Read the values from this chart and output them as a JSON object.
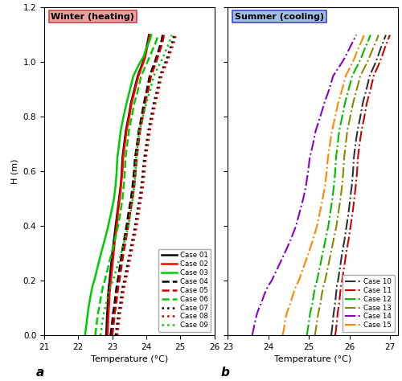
{
  "winter_label": "Winter (heating)",
  "summer_label": "Summer (cooling)",
  "xlabel": "Temperature (°C)",
  "ylabel": "H (m)",
  "label_a": "a",
  "label_b": "b",
  "ylim": [
    0.0,
    1.2
  ],
  "winter_xlim": [
    21,
    26
  ],
  "summer_xlim": [
    23,
    27.2
  ],
  "winter_xticks": [
    21,
    22,
    23,
    24,
    25,
    26
  ],
  "summer_xticks": [
    23,
    24,
    25,
    26,
    27
  ],
  "yticks": [
    0.0,
    0.2,
    0.4,
    0.6,
    0.8,
    1.0,
    1.2
  ],
  "height_points": [
    0.0,
    0.02,
    0.05,
    0.08,
    0.1,
    0.12,
    0.15,
    0.18,
    0.2,
    0.25,
    0.3,
    0.35,
    0.4,
    0.45,
    0.5,
    0.55,
    0.6,
    0.65,
    0.7,
    0.75,
    0.8,
    0.85,
    0.9,
    0.95,
    1.0,
    1.02,
    1.05,
    1.08,
    1.1
  ],
  "winter_cases": {
    "Case 01": {
      "color": "#000000",
      "linestyle": "solid",
      "linewidth": 1.8,
      "temps": [
        22.82,
        22.83,
        22.84,
        22.85,
        22.86,
        22.87,
        22.88,
        22.9,
        22.92,
        22.96,
        23.0,
        23.05,
        23.1,
        23.15,
        23.2,
        23.25,
        23.28,
        23.3,
        23.35,
        23.4,
        23.48,
        23.55,
        23.65,
        23.75,
        23.9,
        23.95,
        24.0,
        24.05,
        24.08
      ]
    },
    "Case 02": {
      "color": "#ff0000",
      "linestyle": "solid",
      "linewidth": 1.8,
      "temps": [
        22.86,
        22.87,
        22.88,
        22.89,
        22.9,
        22.91,
        22.92,
        22.94,
        22.96,
        23.0,
        23.04,
        23.08,
        23.13,
        23.17,
        23.22,
        23.26,
        23.3,
        23.32,
        23.37,
        23.42,
        23.5,
        23.57,
        23.67,
        23.77,
        23.92,
        23.97,
        24.02,
        24.07,
        24.1
      ]
    },
    "Case 03": {
      "color": "#00cc00",
      "linestyle": "solid",
      "linewidth": 1.8,
      "temps": [
        22.2,
        22.22,
        22.25,
        22.28,
        22.3,
        22.33,
        22.37,
        22.42,
        22.47,
        22.57,
        22.67,
        22.78,
        22.88,
        22.97,
        23.05,
        23.1,
        23.13,
        23.15,
        23.2,
        23.25,
        23.33,
        23.42,
        23.52,
        23.62,
        23.82,
        23.92,
        24.0,
        24.1,
        24.15
      ]
    },
    "Case 04": {
      "color": "#000000",
      "linestyle": "dashed",
      "linewidth": 1.8,
      "temps": [
        22.95,
        22.97,
        23.0,
        23.02,
        23.05,
        23.07,
        23.1,
        23.13,
        23.16,
        23.22,
        23.28,
        23.35,
        23.42,
        23.48,
        23.55,
        23.6,
        23.64,
        23.67,
        23.73,
        23.78,
        23.86,
        23.93,
        24.02,
        24.1,
        24.25,
        24.3,
        24.38,
        24.45,
        24.48
      ]
    },
    "Case 05": {
      "color": "#cc0000",
      "linestyle": "dashed",
      "linewidth": 1.8,
      "temps": [
        23.0,
        23.02,
        23.05,
        23.07,
        23.1,
        23.12,
        23.15,
        23.18,
        23.21,
        23.27,
        23.33,
        23.4,
        23.47,
        23.53,
        23.6,
        23.65,
        23.69,
        23.72,
        23.77,
        23.82,
        23.9,
        23.97,
        24.06,
        24.14,
        24.29,
        24.34,
        24.42,
        24.49,
        24.52
      ]
    },
    "Case 06": {
      "color": "#00cc00",
      "linestyle": "dashed",
      "linewidth": 1.8,
      "temps": [
        22.5,
        22.52,
        22.55,
        22.58,
        22.61,
        22.64,
        22.68,
        22.73,
        22.78,
        22.88,
        22.98,
        23.08,
        23.17,
        23.24,
        23.3,
        23.34,
        23.37,
        23.39,
        23.44,
        23.49,
        23.57,
        23.65,
        23.76,
        23.85,
        24.03,
        24.1,
        24.2,
        24.3,
        24.35
      ]
    },
    "Case 07": {
      "color": "#000000",
      "linestyle": "dotted",
      "linewidth": 1.8,
      "temps": [
        23.1,
        23.12,
        23.15,
        23.18,
        23.21,
        23.24,
        23.27,
        23.31,
        23.35,
        23.43,
        23.51,
        23.59,
        23.67,
        23.73,
        23.8,
        23.86,
        23.9,
        23.94,
        24.0,
        24.06,
        24.14,
        24.22,
        24.32,
        24.4,
        24.56,
        24.62,
        24.7,
        24.78,
        24.82
      ]
    },
    "Case 08": {
      "color": "#cc0000",
      "linestyle": "dotted",
      "linewidth": 1.8,
      "temps": [
        23.15,
        23.17,
        23.2,
        23.23,
        23.26,
        23.29,
        23.32,
        23.36,
        23.4,
        23.48,
        23.56,
        23.64,
        23.72,
        23.78,
        23.85,
        23.91,
        23.95,
        23.99,
        24.05,
        24.11,
        24.19,
        24.27,
        24.37,
        24.45,
        24.61,
        24.67,
        24.75,
        24.83,
        24.87
      ]
    },
    "Case 09": {
      "color": "#00cc00",
      "linestyle": "dotted",
      "linewidth": 1.8,
      "temps": [
        22.65,
        22.68,
        22.71,
        22.75,
        22.79,
        22.83,
        22.88,
        22.95,
        23.02,
        23.14,
        23.26,
        23.37,
        23.47,
        23.54,
        23.6,
        23.65,
        23.68,
        23.7,
        23.75,
        23.8,
        23.9,
        24.0,
        24.12,
        24.22,
        24.42,
        24.5,
        24.6,
        24.7,
        24.75
      ]
    }
  },
  "summer_cases": {
    "Case 10": {
      "color": "#333333",
      "linestyle": "dashdot",
      "linewidth": 1.5,
      "temps": [
        25.55,
        25.57,
        25.59,
        25.61,
        25.63,
        25.65,
        25.67,
        25.69,
        25.72,
        25.77,
        25.82,
        25.88,
        25.93,
        25.98,
        26.02,
        26.06,
        26.09,
        26.11,
        26.15,
        26.2,
        26.27,
        26.33,
        26.42,
        26.5,
        26.65,
        26.7,
        26.77,
        26.85,
        26.9
      ]
    },
    "Case 11": {
      "color": "#cc0000",
      "linestyle": "dashdot",
      "linewidth": 1.5,
      "temps": [
        25.65,
        25.67,
        25.69,
        25.71,
        25.73,
        25.75,
        25.77,
        25.79,
        25.82,
        25.87,
        25.92,
        25.98,
        26.03,
        26.08,
        26.12,
        26.16,
        26.19,
        26.21,
        26.25,
        26.3,
        26.37,
        26.43,
        26.52,
        26.6,
        26.75,
        26.8,
        26.87,
        26.95,
        27.0
      ]
    },
    "Case 12": {
      "color": "#00bb00",
      "linestyle": "dashdot",
      "linewidth": 1.5,
      "temps": [
        24.95,
        24.97,
        25.0,
        25.03,
        25.06,
        25.09,
        25.12,
        25.16,
        25.2,
        25.27,
        25.34,
        25.41,
        25.48,
        25.53,
        25.58,
        25.62,
        25.65,
        25.67,
        25.71,
        25.75,
        25.82,
        25.89,
        25.98,
        26.07,
        26.24,
        26.3,
        26.38,
        26.47,
        26.52
      ]
    },
    "Case 13": {
      "color": "#888800",
      "linestyle": "dashdot",
      "linewidth": 1.5,
      "temps": [
        25.15,
        25.17,
        25.2,
        25.23,
        25.26,
        25.29,
        25.32,
        25.36,
        25.4,
        25.47,
        25.54,
        25.61,
        25.68,
        25.73,
        25.78,
        25.82,
        25.85,
        25.87,
        25.91,
        25.95,
        26.02,
        26.09,
        26.18,
        26.27,
        26.44,
        26.5,
        26.58,
        26.67,
        26.72
      ]
    },
    "Case 14": {
      "color": "#8800cc",
      "linestyle": "dashdot",
      "linewidth": 1.5,
      "temps": [
        23.6,
        23.63,
        23.67,
        23.72,
        23.77,
        23.83,
        23.9,
        23.99,
        24.08,
        24.24,
        24.4,
        24.55,
        24.68,
        24.77,
        24.86,
        24.93,
        24.98,
        25.02,
        25.1,
        25.17,
        25.28,
        25.38,
        25.5,
        25.6,
        25.82,
        25.9,
        26.0,
        26.1,
        26.17
      ]
    },
    "Case 15": {
      "color": "#ff8800",
      "linestyle": "dashdot",
      "linewidth": 1.5,
      "temps": [
        24.35,
        24.38,
        24.41,
        24.45,
        24.5,
        24.55,
        24.61,
        24.68,
        24.75,
        24.87,
        24.99,
        25.1,
        25.2,
        25.27,
        25.34,
        25.4,
        25.44,
        25.47,
        25.52,
        25.57,
        25.65,
        25.72,
        25.82,
        25.91,
        26.08,
        26.14,
        26.22,
        26.31,
        26.36
      ]
    }
  },
  "winter_bg": "#e8a0a0",
  "summer_bg": "#a0c0e8",
  "winter_border": "#cc4444",
  "summer_border": "#4444cc"
}
